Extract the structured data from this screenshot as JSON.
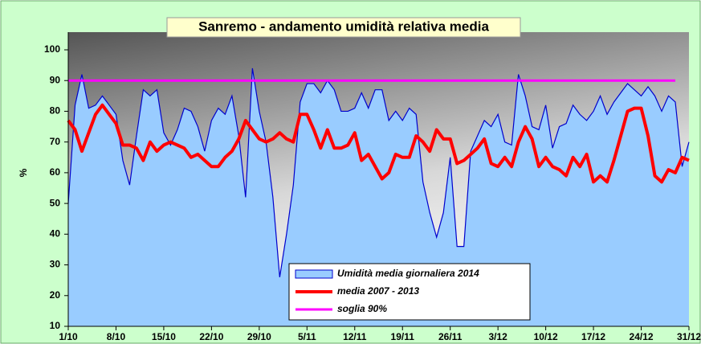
{
  "chart_data": {
    "type": "line",
    "title": "Sanremo - andamento umidità relativa media",
    "y_label": "%",
    "categories": [
      "1/10",
      null,
      null,
      null,
      null,
      null,
      null,
      "8/10",
      null,
      null,
      null,
      null,
      null,
      null,
      "15/10",
      null,
      null,
      null,
      null,
      null,
      null,
      "22/10",
      null,
      null,
      null,
      null,
      null,
      null,
      "29/10",
      null,
      null,
      null,
      null,
      null,
      null,
      "5/11",
      null,
      null,
      null,
      null,
      null,
      null,
      "12/11",
      null,
      null,
      null,
      null,
      null,
      null,
      "19/11",
      null,
      null,
      null,
      null,
      null,
      null,
      "26/11",
      null,
      null,
      null,
      null,
      null,
      null,
      "3/12",
      null,
      null,
      null,
      null,
      null,
      null,
      "10/12",
      null,
      null,
      null,
      null,
      null,
      null,
      "17/12",
      null,
      null,
      null,
      null,
      null,
      null,
      "24/12",
      null,
      null,
      null,
      null,
      null,
      null,
      "31/12"
    ],
    "series": [
      {
        "name": "Umidità media giornaliera 2014",
        "kind": "area",
        "color": "#99ccff",
        "line_color": "#0000cc",
        "values": [
          50,
          82,
          92,
          81,
          82,
          85,
          82,
          79,
          64,
          56,
          72,
          87,
          85,
          87,
          73,
          69,
          74,
          81,
          80,
          75,
          67,
          77,
          81,
          79,
          85,
          72,
          52,
          94,
          80,
          70,
          52,
          26,
          40,
          56,
          83,
          89,
          89,
          86,
          90,
          87,
          80,
          80,
          81,
          86,
          81,
          87,
          87,
          77,
          80,
          77,
          81,
          79,
          57,
          47,
          39,
          47,
          65,
          36,
          36,
          67,
          72,
          77,
          75,
          79,
          70,
          69,
          92,
          85,
          75,
          74,
          82,
          68,
          75,
          76,
          82,
          79,
          77,
          80,
          85,
          79,
          83,
          86,
          89,
          87,
          85,
          88,
          85,
          80,
          85,
          83,
          62,
          70
        ]
      },
      {
        "name": "media 2007 - 2013",
        "kind": "line",
        "color": "#ff0000",
        "width": 4,
        "values": [
          77,
          74,
          67,
          73,
          79,
          82,
          79,
          76,
          69,
          69,
          68,
          64,
          70,
          67,
          69,
          70,
          69,
          68,
          65,
          66,
          64,
          62,
          62,
          65,
          67,
          71,
          77,
          74,
          71,
          70,
          71,
          73,
          71,
          70,
          79,
          79,
          74,
          68,
          74,
          68,
          68,
          69,
          73,
          64,
          66,
          62,
          58,
          60,
          66,
          65,
          65,
          72,
          70,
          67,
          74,
          71,
          71,
          63,
          64,
          66,
          68,
          71,
          63,
          62,
          65,
          62,
          70,
          75,
          71,
          62,
          65,
          62,
          61,
          59,
          65,
          62,
          66,
          57,
          59,
          57,
          64,
          72,
          80,
          81,
          81,
          72,
          59,
          57,
          61,
          60,
          65,
          64
        ]
      },
      {
        "name": "soglia 90%",
        "kind": "line",
        "color": "#ff00ff",
        "width": 3,
        "values": [
          90,
          90,
          90,
          90,
          90,
          90,
          90,
          90,
          90,
          90,
          90,
          90,
          90,
          90,
          90,
          90,
          90,
          90,
          90,
          90,
          90,
          90,
          90,
          90,
          90,
          90,
          90,
          90,
          90,
          90,
          90,
          90,
          90,
          90,
          90,
          90,
          90,
          90,
          90,
          90,
          90,
          90,
          90,
          90,
          90,
          90,
          90,
          90,
          90,
          90,
          90,
          90,
          90,
          90,
          90,
          90,
          90,
          90,
          90,
          90,
          90,
          90,
          90,
          90,
          90,
          90,
          90,
          90,
          90,
          90,
          90,
          90,
          90,
          90,
          90,
          90,
          90,
          90,
          90,
          90,
          90,
          90,
          90,
          90,
          90,
          90,
          90,
          90,
          90,
          90,
          null,
          null
        ]
      }
    ],
    "ylim": [
      10,
      100
    ],
    "yticks": [
      10,
      20,
      30,
      40,
      50,
      60,
      70,
      80,
      90,
      100
    ],
    "grid": false
  }
}
